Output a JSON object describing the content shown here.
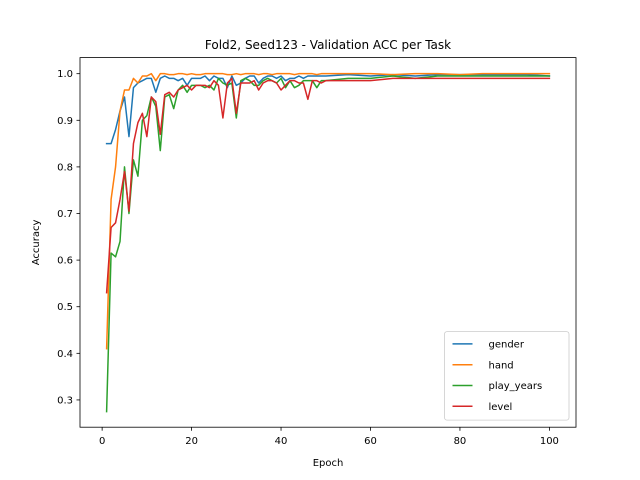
{
  "chart_data": {
    "type": "line",
    "title": "Fold2, Seed123 - Validation ACC per Task",
    "xlabel": "Epoch",
    "ylabel": "Accuracy",
    "xlim": [
      -4.95,
      105.95
    ],
    "ylim": [
      0.2415,
      1.0345
    ],
    "xticks": [
      0,
      20,
      40,
      60,
      80,
      100
    ],
    "yticks": [
      0.3,
      0.4,
      0.5,
      0.6,
      0.7,
      0.8,
      0.9,
      1.0
    ],
    "ytick_labels": [
      "0.3",
      "0.4",
      "0.5",
      "0.6",
      "0.7",
      "0.8",
      "0.9",
      "1.0"
    ],
    "legend_position": "lower-right",
    "grid": false,
    "series": [
      {
        "name": "gender",
        "color": "#1f77b4",
        "x": [
          1,
          2,
          3,
          4,
          5,
          6,
          7,
          8,
          9,
          10,
          11,
          12,
          13,
          14,
          15,
          16,
          17,
          18,
          19,
          20,
          21,
          22,
          23,
          24,
          25,
          26,
          27,
          28,
          29,
          30,
          31,
          32,
          33,
          34,
          35,
          36,
          37,
          38,
          39,
          40,
          41,
          42,
          43,
          44,
          45,
          46,
          47,
          48,
          49,
          50,
          55,
          60,
          65,
          70,
          75,
          80,
          85,
          90,
          95,
          100
        ],
        "y": [
          0.85,
          0.85,
          0.88,
          0.92,
          0.95,
          0.865,
          0.97,
          0.98,
          0.985,
          0.99,
          0.99,
          0.96,
          0.99,
          0.995,
          0.99,
          0.99,
          0.985,
          0.99,
          0.975,
          0.99,
          0.99,
          0.99,
          0.995,
          0.985,
          0.995,
          0.99,
          0.99,
          0.97,
          0.995,
          0.975,
          0.98,
          0.99,
          0.995,
          0.995,
          0.98,
          0.99,
          0.995,
          0.995,
          0.99,
          0.995,
          0.985,
          0.99,
          0.99,
          0.995,
          0.99,
          0.995,
          0.995,
          0.995,
          0.995,
          0.995,
          0.998,
          0.995,
          0.998,
          0.995,
          0.998,
          0.998,
          0.998,
          0.998,
          0.998,
          0.995
        ]
      },
      {
        "name": "hand",
        "color": "#ff7f0e",
        "x": [
          1,
          2,
          3,
          4,
          5,
          6,
          7,
          8,
          9,
          10,
          11,
          12,
          13,
          14,
          15,
          16,
          17,
          18,
          19,
          20,
          21,
          22,
          23,
          24,
          25,
          26,
          27,
          28,
          29,
          30,
          31,
          32,
          33,
          34,
          35,
          36,
          37,
          38,
          39,
          40,
          41,
          42,
          43,
          44,
          45,
          46,
          47,
          48,
          49,
          50,
          55,
          60,
          65,
          70,
          75,
          80,
          85,
          90,
          95,
          100
        ],
        "y": [
          0.41,
          0.73,
          0.8,
          0.92,
          0.965,
          0.965,
          0.99,
          0.98,
          0.995,
          0.995,
          1.0,
          0.985,
          1.0,
          1.0,
          0.998,
          0.998,
          1.0,
          1.0,
          0.998,
          1.0,
          0.998,
          0.998,
          1.0,
          1.0,
          1.0,
          1.0,
          1.0,
          0.998,
          0.998,
          1.0,
          0.998,
          1.0,
          1.0,
          1.0,
          0.998,
          1.0,
          1.0,
          0.998,
          1.0,
          1.0,
          1.0,
          1.0,
          0.998,
          1.0,
          1.0,
          1.0,
          1.0,
          0.998,
          1.0,
          1.0,
          1.0,
          1.0,
          0.998,
          1.0,
          1.0,
          0.998,
          1.0,
          1.0,
          1.0,
          1.0
        ]
      },
      {
        "name": "play_years",
        "color": "#2ca02c",
        "x": [
          1,
          2,
          3,
          4,
          5,
          6,
          7,
          8,
          9,
          10,
          11,
          12,
          13,
          14,
          15,
          16,
          17,
          18,
          19,
          20,
          21,
          22,
          23,
          24,
          25,
          26,
          27,
          28,
          29,
          30,
          31,
          32,
          33,
          34,
          35,
          36,
          37,
          38,
          39,
          40,
          41,
          42,
          43,
          44,
          45,
          46,
          47,
          48,
          49,
          50,
          55,
          60,
          65,
          70,
          75,
          80,
          85,
          90,
          95,
          100
        ],
        "y": [
          0.275,
          0.615,
          0.607,
          0.64,
          0.8,
          0.7,
          0.815,
          0.78,
          0.9,
          0.91,
          0.95,
          0.93,
          0.835,
          0.95,
          0.955,
          0.925,
          0.965,
          0.975,
          0.96,
          0.975,
          0.975,
          0.975,
          0.97,
          0.975,
          0.965,
          0.99,
          0.98,
          0.975,
          0.98,
          0.905,
          0.985,
          0.99,
          0.985,
          0.975,
          0.975,
          0.985,
          0.99,
          0.985,
          0.98,
          0.99,
          0.97,
          0.985,
          0.97,
          0.975,
          0.985,
          0.985,
          0.985,
          0.97,
          0.985,
          0.985,
          0.99,
          0.99,
          0.995,
          0.99,
          0.995,
          0.995,
          0.995,
          0.995,
          0.995,
          0.995
        ]
      },
      {
        "name": "level",
        "color": "#d62728",
        "x": [
          1,
          2,
          3,
          4,
          5,
          6,
          7,
          8,
          9,
          10,
          11,
          12,
          13,
          14,
          15,
          16,
          17,
          18,
          19,
          20,
          21,
          22,
          23,
          24,
          25,
          26,
          27,
          28,
          29,
          30,
          31,
          32,
          33,
          34,
          35,
          36,
          37,
          38,
          39,
          40,
          41,
          42,
          43,
          44,
          45,
          46,
          47,
          48,
          49,
          50,
          55,
          60,
          65,
          70,
          75,
          80,
          85,
          90,
          95,
          100
        ],
        "y": [
          0.53,
          0.67,
          0.68,
          0.73,
          0.79,
          0.705,
          0.85,
          0.895,
          0.915,
          0.865,
          0.95,
          0.94,
          0.87,
          0.955,
          0.96,
          0.95,
          0.965,
          0.97,
          0.975,
          0.965,
          0.975,
          0.975,
          0.975,
          0.97,
          0.985,
          0.975,
          0.905,
          0.98,
          0.99,
          0.915,
          0.98,
          0.98,
          0.98,
          0.985,
          0.965,
          0.98,
          0.985,
          0.985,
          0.98,
          0.965,
          0.975,
          0.985,
          0.985,
          0.98,
          0.98,
          0.945,
          0.985,
          0.985,
          0.98,
          0.985,
          0.985,
          0.985,
          0.99,
          0.99,
          0.99,
          0.99,
          0.99,
          0.99,
          0.99,
          0.99
        ]
      }
    ]
  }
}
